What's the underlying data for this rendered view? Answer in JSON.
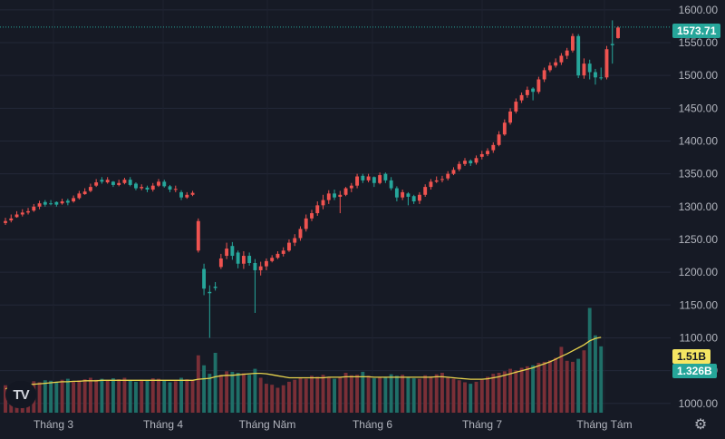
{
  "chart_data": {
    "type": "candlestick",
    "y_ticks": [
      "1600.00",
      "1550.00",
      "1500.00",
      "1450.00",
      "1400.00",
      "1350.00",
      "1300.00",
      "1250.00",
      "1200.00",
      "1150.00",
      "1100.00",
      "1050.00",
      "1000.00"
    ],
    "ylim": [
      990,
      1615
    ],
    "x_tick_labels": [
      "Tháng 3",
      "Tháng 4",
      "Tháng Năm",
      "Tháng 6",
      "Tháng 7",
      "Tháng Tám"
    ],
    "last_price": "1573.71",
    "volume_ma_value": "1.51B",
    "volume_value": "1.326B",
    "colors": {
      "up": "#26a69a",
      "down": "#ef5350",
      "ma": "#e8d44d",
      "vol_up": "#1f6f68",
      "vol_down": "#7a2f37"
    },
    "candles": [
      [
        1278,
        1283,
        1272,
        1275
      ],
      [
        1282,
        1288,
        1276,
        1279
      ],
      [
        1288,
        1293,
        1283,
        1284
      ],
      [
        1291,
        1296,
        1285,
        1288
      ],
      [
        1293,
        1298,
        1288,
        1291
      ],
      [
        1300,
        1304,
        1292,
        1294
      ],
      [
        1305,
        1309,
        1296,
        1300
      ],
      [
        1303,
        1310,
        1300,
        1307
      ],
      [
        1305,
        1310,
        1302,
        1305
      ],
      [
        1303,
        1308,
        1300,
        1307
      ],
      [
        1308,
        1312,
        1303,
        1305
      ],
      [
        1306,
        1312,
        1302,
        1309
      ],
      [
        1313,
        1317,
        1306,
        1308
      ],
      [
        1320,
        1324,
        1311,
        1313
      ],
      [
        1323,
        1328,
        1318,
        1319
      ],
      [
        1330,
        1335,
        1322,
        1324
      ],
      [
        1337,
        1342,
        1330,
        1332
      ],
      [
        1338,
        1345,
        1335,
        1341
      ],
      [
        1341,
        1345,
        1335,
        1337
      ],
      [
        1333,
        1339,
        1330,
        1338
      ],
      [
        1336,
        1341,
        1331,
        1333
      ],
      [
        1341,
        1344,
        1334,
        1336
      ],
      [
        1333,
        1345,
        1331,
        1341
      ],
      [
        1328,
        1337,
        1325,
        1335
      ],
      [
        1330,
        1334,
        1325,
        1328
      ],
      [
        1326,
        1332,
        1322,
        1329
      ],
      [
        1332,
        1336,
        1323,
        1326
      ],
      [
        1338,
        1342,
        1330,
        1332
      ],
      [
        1331,
        1341,
        1329,
        1338
      ],
      [
        1326,
        1333,
        1322,
        1331
      ],
      [
        1327,
        1332,
        1322,
        1326
      ],
      [
        1314,
        1325,
        1310,
        1322
      ],
      [
        1318,
        1322,
        1312,
        1314
      ],
      [
        1321,
        1324,
        1316,
        1318
      ],
      [
        1278,
        1282,
        1230,
        1233
      ],
      [
        1175,
        1213,
        1165,
        1205
      ],
      [
        1168,
        1180,
        1100,
        1170
      ],
      [
        1176,
        1185,
        1172,
        1178
      ],
      [
        1221,
        1228,
        1205,
        1208
      ],
      [
        1236,
        1245,
        1220,
        1225
      ],
      [
        1225,
        1246,
        1219,
        1240
      ],
      [
        1213,
        1233,
        1206,
        1230
      ],
      [
        1225,
        1232,
        1205,
        1213
      ],
      [
        1214,
        1230,
        1210,
        1225
      ],
      [
        1203,
        1220,
        1138,
        1214
      ],
      [
        1209,
        1216,
        1195,
        1203
      ],
      [
        1217,
        1221,
        1203,
        1209
      ],
      [
        1222,
        1226,
        1215,
        1217
      ],
      [
        1228,
        1232,
        1220,
        1222
      ],
      [
        1233,
        1238,
        1224,
        1228
      ],
      [
        1245,
        1250,
        1231,
        1233
      ],
      [
        1252,
        1258,
        1240,
        1245
      ],
      [
        1266,
        1270,
        1248,
        1252
      ],
      [
        1282,
        1288,
        1262,
        1266
      ],
      [
        1290,
        1295,
        1278,
        1282
      ],
      [
        1302,
        1308,
        1286,
        1290
      ],
      [
        1310,
        1318,
        1296,
        1302
      ],
      [
        1320,
        1325,
        1304,
        1310
      ],
      [
        1314,
        1326,
        1310,
        1320
      ],
      [
        1318,
        1324,
        1290,
        1315
      ],
      [
        1328,
        1330,
        1316,
        1318
      ],
      [
        1332,
        1336,
        1322,
        1328
      ],
      [
        1346,
        1350,
        1328,
        1332
      ],
      [
        1340,
        1350,
        1336,
        1347
      ],
      [
        1346,
        1350,
        1337,
        1340
      ],
      [
        1336,
        1346,
        1330,
        1345
      ],
      [
        1348,
        1352,
        1334,
        1336
      ],
      [
        1340,
        1352,
        1336,
        1350
      ],
      [
        1328,
        1345,
        1325,
        1340
      ],
      [
        1314,
        1331,
        1308,
        1328
      ],
      [
        1322,
        1326,
        1310,
        1314
      ],
      [
        1315,
        1322,
        1302,
        1320
      ],
      [
        1308,
        1318,
        1304,
        1316
      ],
      [
        1318,
        1322,
        1304,
        1309
      ],
      [
        1330,
        1334,
        1315,
        1318
      ],
      [
        1338,
        1342,
        1326,
        1330
      ],
      [
        1340,
        1346,
        1336,
        1338
      ],
      [
        1342,
        1347,
        1337,
        1341
      ],
      [
        1350,
        1354,
        1340,
        1343
      ],
      [
        1356,
        1360,
        1348,
        1350
      ],
      [
        1365,
        1369,
        1354,
        1357
      ],
      [
        1370,
        1374,
        1362,
        1365
      ],
      [
        1366,
        1372,
        1362,
        1370
      ],
      [
        1374,
        1378,
        1364,
        1367
      ],
      [
        1380,
        1385,
        1372,
        1376
      ],
      [
        1385,
        1389,
        1377,
        1380
      ],
      [
        1394,
        1398,
        1382,
        1386
      ],
      [
        1410,
        1415,
        1392,
        1394
      ],
      [
        1428,
        1433,
        1408,
        1410
      ],
      [
        1445,
        1450,
        1425,
        1428
      ],
      [
        1460,
        1465,
        1442,
        1445
      ],
      [
        1470,
        1474,
        1458,
        1462
      ],
      [
        1478,
        1483,
        1466,
        1470
      ],
      [
        1475,
        1482,
        1462,
        1480
      ],
      [
        1494,
        1498,
        1472,
        1475
      ],
      [
        1508,
        1512,
        1490,
        1494
      ],
      [
        1515,
        1520,
        1505,
        1508
      ],
      [
        1520,
        1526,
        1512,
        1515
      ],
      [
        1530,
        1534,
        1516,
        1520
      ],
      [
        1538,
        1542,
        1525,
        1530
      ],
      [
        1560,
        1564,
        1535,
        1538
      ],
      [
        1500,
        1563,
        1496,
        1560
      ],
      [
        1518,
        1526,
        1495,
        1500
      ],
      [
        1505,
        1524,
        1494,
        1518
      ],
      [
        1497,
        1510,
        1486,
        1505
      ],
      [
        1497,
        1512,
        1493,
        1497
      ],
      [
        1540,
        1545,
        1494,
        1497
      ],
      [
        1546,
        1584,
        1518,
        1548
      ],
      [
        1573,
        1575,
        1556,
        1557
      ]
    ],
    "volumes": [
      0.55,
      0.5,
      0.52,
      0.6,
      0.58,
      0.63,
      0.61,
      0.65,
      0.64,
      0.62,
      0.66,
      0.68,
      0.63,
      0.65,
      0.67,
      0.7,
      0.66,
      0.68,
      0.64,
      0.69,
      0.67,
      0.7,
      0.65,
      0.62,
      0.66,
      0.64,
      0.69,
      0.68,
      0.64,
      0.61,
      0.63,
      0.7,
      0.67,
      0.65,
      1.15,
      0.95,
      0.78,
      1.2,
      0.76,
      0.83,
      0.82,
      0.8,
      0.79,
      0.76,
      0.88,
      0.7,
      0.58,
      0.56,
      0.5,
      0.55,
      0.62,
      0.66,
      0.7,
      0.68,
      0.74,
      0.72,
      0.76,
      0.72,
      0.68,
      0.71,
      0.8,
      0.75,
      0.76,
      0.82,
      0.74,
      0.69,
      0.7,
      0.72,
      0.77,
      0.74,
      0.76,
      0.71,
      0.69,
      0.68,
      0.75,
      0.73,
      0.77,
      0.8,
      0.7,
      0.68,
      0.65,
      0.61,
      0.58,
      0.62,
      0.66,
      0.72,
      0.78,
      0.8,
      0.83,
      0.88,
      0.85,
      0.9,
      0.93,
      0.95,
      1.0,
      1.02,
      1.05,
      1.1,
      1.32,
      1.04,
      1.02,
      1.08,
      1.25,
      2.1,
      1.55,
      1.33
    ],
    "volume_ma": [
      0.48,
      0.5,
      0.52,
      0.54,
      0.56,
      0.57,
      0.58,
      0.59,
      0.6,
      0.61,
      0.62,
      0.62,
      0.63,
      0.63,
      0.64,
      0.64,
      0.64,
      0.65,
      0.65,
      0.65,
      0.65,
      0.65,
      0.65,
      0.65,
      0.65,
      0.65,
      0.65,
      0.65,
      0.65,
      0.65,
      0.65,
      0.65,
      0.65,
      0.65,
      0.67,
      0.68,
      0.69,
      0.72,
      0.74,
      0.75,
      0.75,
      0.76,
      0.77,
      0.78,
      0.79,
      0.79,
      0.78,
      0.76,
      0.74,
      0.72,
      0.7,
      0.7,
      0.7,
      0.7,
      0.7,
      0.7,
      0.7,
      0.71,
      0.71,
      0.71,
      0.72,
      0.72,
      0.72,
      0.72,
      0.72,
      0.71,
      0.71,
      0.71,
      0.71,
      0.71,
      0.71,
      0.71,
      0.71,
      0.71,
      0.71,
      0.71,
      0.72,
      0.72,
      0.71,
      0.7,
      0.69,
      0.68,
      0.67,
      0.67,
      0.67,
      0.68,
      0.7,
      0.72,
      0.75,
      0.78,
      0.81,
      0.84,
      0.87,
      0.9,
      0.94,
      0.98,
      1.02,
      1.07,
      1.13,
      1.18,
      1.24,
      1.3,
      1.36,
      1.44,
      1.49,
      1.51
    ]
  }
}
